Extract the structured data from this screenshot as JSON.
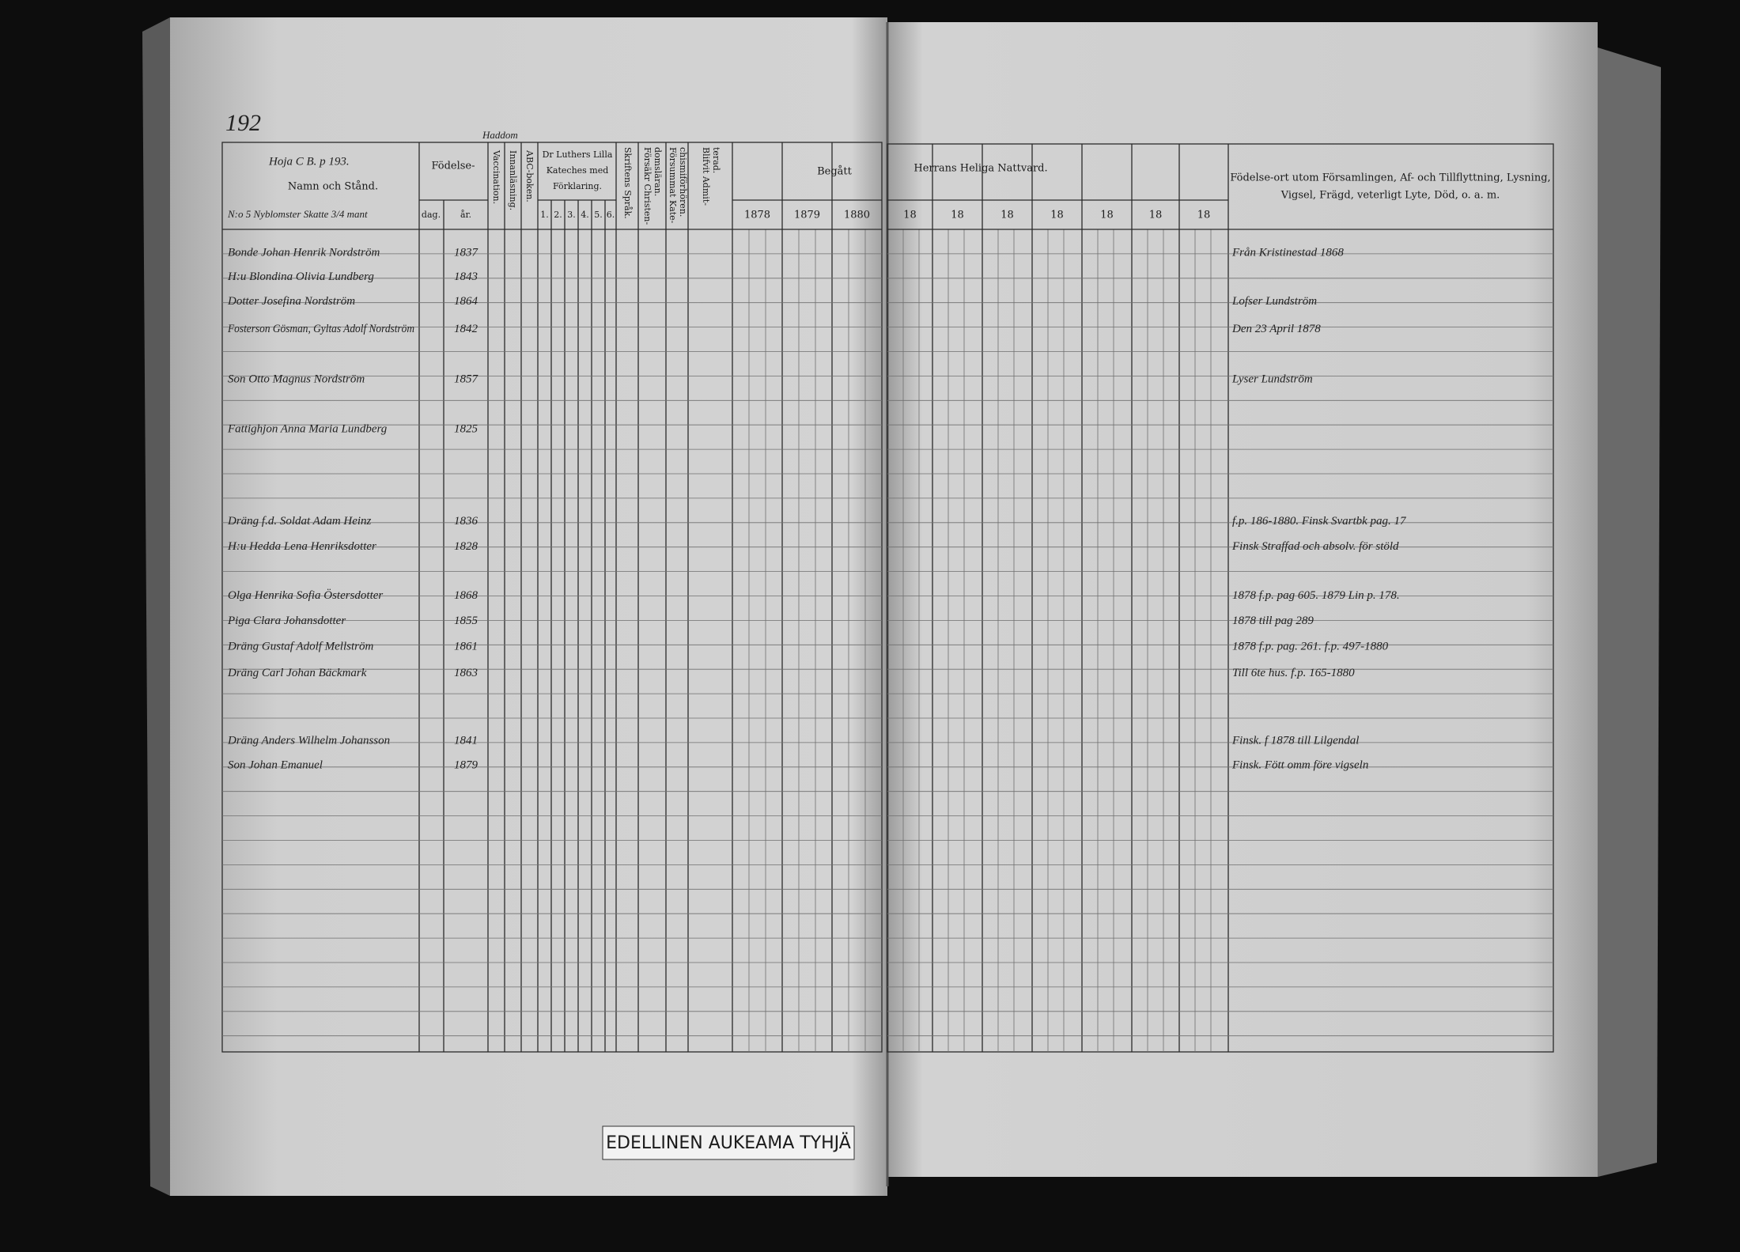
{
  "page_number": "192",
  "top_note": "Hoja C B. p 193.",
  "place_note": "Haddom",
  "left_header": {
    "name_col": "Namn och Stånd.",
    "household": "N:o 5   Nyblomster   Skatte 3/4 mant",
    "birth": "Födelse-",
    "birth_day": "dag.",
    "birth_year": "år.",
    "vaccination": "Vaccination.",
    "reading": "Innanläsning.",
    "abc": "ABC-boken.",
    "luther": [
      "Dr Luthers Lilla",
      "Kateches med",
      "Förklaring."
    ],
    "luther_parts": [
      "1.",
      "2.",
      "3.",
      "4.",
      "5.",
      "6."
    ],
    "scripture": "Skriftens Språk.",
    "christendom": [
      "Försäkr Christen-",
      "domsläran."
    ],
    "neglected": [
      "Försummat Kate-",
      "chismiförhören."
    ],
    "admitted": [
      "Blifvit Admit-",
      "terad."
    ],
    "years": [
      "1878",
      "1879",
      "1880"
    ],
    "taken": "Begått"
  },
  "right_header": {
    "communion": "Herrans Heliga Nattvard.",
    "years": [
      "18",
      "18",
      "18",
      "18",
      "18",
      "18",
      "18"
    ],
    "remarks": [
      "Födelse-ort utom Församlingen, Af- och Tillflyttning, Lysning,",
      "Vigsel, Frägd, veterligt Lyte, Död, o. a. m."
    ]
  },
  "entries": [
    {
      "name": "Bonde Johan Henrik Nordström",
      "year": "1837",
      "remark": "Från Kristinestad 1868"
    },
    {
      "name": "H:u Blondina Olivia Lundberg",
      "year": "1843"
    },
    {
      "name": "Dotter Josefina Nordström",
      "year": "1864",
      "remark": "Lofser Lundström"
    },
    {
      "name": "Fosterson Gösman, Gyltas Adolf Nordström",
      "year": "1842",
      "remark": "Den 23 April 1878"
    },
    {
      "name": "Son Otto Magnus Nordström",
      "year": "1857",
      "remark": "Lyser Lundström"
    },
    {
      "name": "Fattighjon Anna Maria Lundberg",
      "year": "1825"
    },
    {
      "name": "Dräng f.d. Soldat Adam Heinz",
      "year": "1836",
      "remark": "f.p. 186-1880. Finsk Svartbk pag. 17"
    },
    {
      "name": "H:u Hedda Lena Henriksdotter",
      "year": "1828",
      "remark": "Finsk Straffad och absolv. för stöld"
    },
    {
      "name": "Olga Henrika Sofia Östersdotter",
      "year": "1868",
      "remark": "1878 f.p. pag 605. 1879 Lin p. 178."
    },
    {
      "name": "Piga Clara Johansdotter",
      "year": "1855",
      "remark": "1878 till pag 289"
    },
    {
      "name": "Dräng Gustaf Adolf Mellström",
      "year": "1861",
      "remark": "1878 f.p. pag. 261. f.p. 497-1880"
    },
    {
      "name": "Dräng Carl Johan Bäckmark",
      "year": "1863",
      "remark": "Till 6te hus. f.p. 165-1880"
    },
    {
      "name": "Dräng Anders Wilhelm Johansson",
      "year": "1841",
      "remark": "Finsk. f 1878 till Lilgendal"
    },
    {
      "name": "Son Johan Emanuel",
      "year": "1879",
      "remark": "Finsk. Fött omm före vigseln"
    }
  ],
  "footer_label": "EDELLINEN AUKEAMA TYHJÄ"
}
